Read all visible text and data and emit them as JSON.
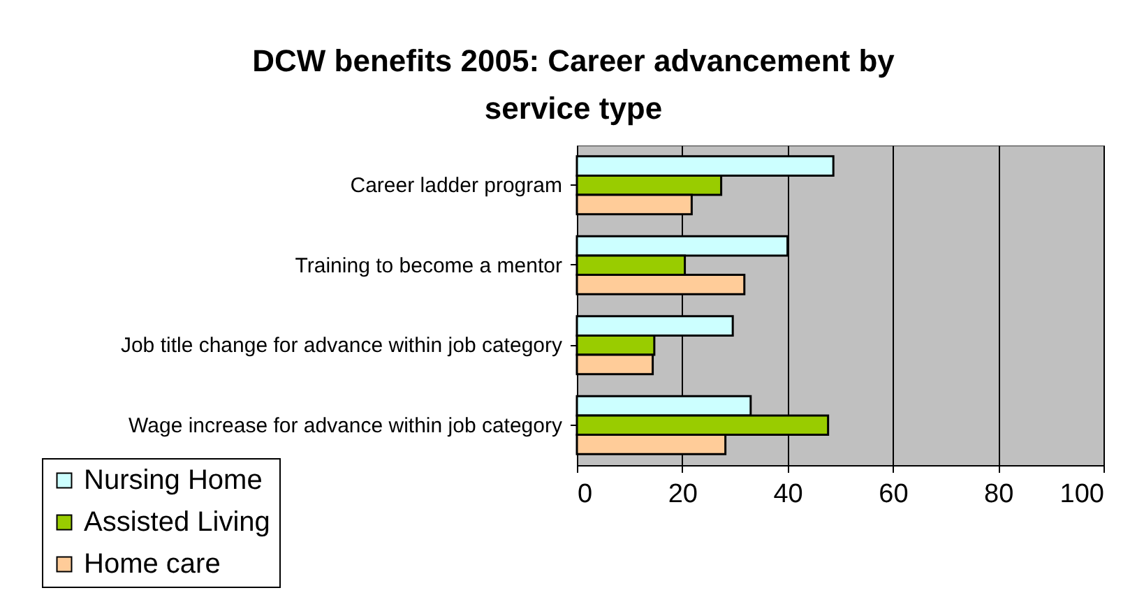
{
  "chart_data": {
    "type": "bar",
    "orientation": "horizontal",
    "title": "DCW benefits 2005: Career advancement by service type",
    "categories": [
      "Career ladder program",
      "Training to become a mentor",
      "Job title change for advance within job category",
      "Wage increase for advance within job category"
    ],
    "series": [
      {
        "name": "Nursing Home",
        "color": "#ccffff",
        "values": [
          48.7,
          40,
          29.6,
          33
        ]
      },
      {
        "name": "Assisted Living",
        "color": "#99cc00",
        "values": [
          27.4,
          20.5,
          14.7,
          47.7
        ]
      },
      {
        "name": "Home care",
        "color": "#ffcc99",
        "values": [
          21.8,
          31.8,
          14.4,
          28.2
        ]
      }
    ],
    "xlim": [
      0,
      100
    ],
    "xticks": [
      0,
      20,
      40,
      60,
      80,
      100
    ],
    "grid": "x",
    "legend": "bottom left"
  }
}
